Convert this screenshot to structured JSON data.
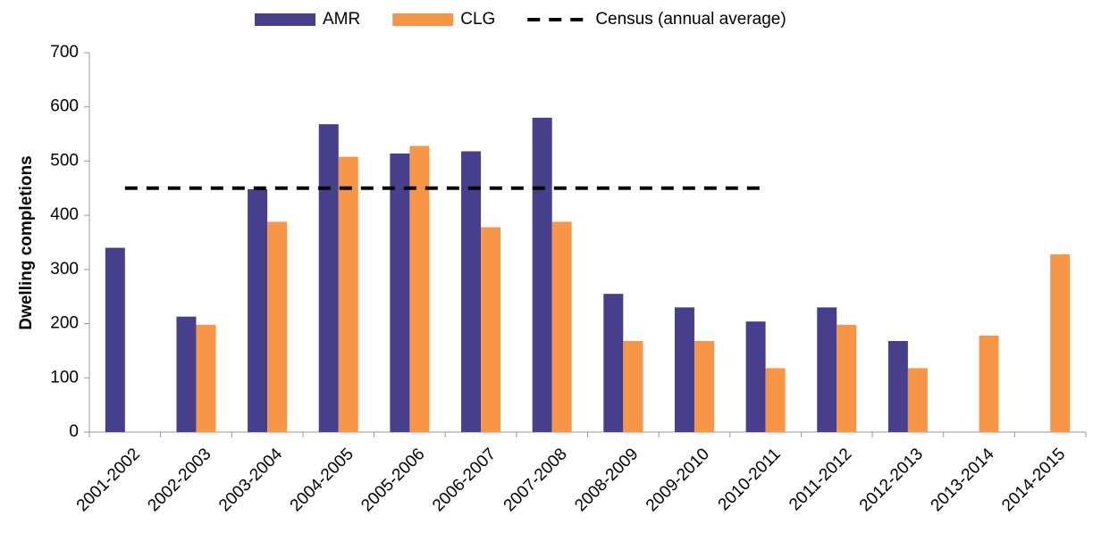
{
  "chart_data": {
    "type": "bar",
    "y_label": "Dwelling completions",
    "categories": [
      "2001-2002",
      "2002-2003",
      "2003-2004",
      "2004-2005",
      "2005-2006",
      "2006-2007",
      "2007-2008",
      "2008-2009",
      "2009-2010",
      "2010-2011",
      "2011-2012",
      "2012-2013",
      "2013-2014",
      "2014-2015"
    ],
    "series": [
      {
        "name": "AMR",
        "type": "bar",
        "color": "#453f8c",
        "values": [
          340,
          213,
          448,
          568,
          514,
          518,
          580,
          255,
          230,
          204,
          230,
          168,
          null,
          null
        ]
      },
      {
        "name": "CLG",
        "type": "bar",
        "color": "#f79646",
        "values": [
          null,
          198,
          388,
          508,
          528,
          378,
          388,
          168,
          168,
          118,
          198,
          118,
          178,
          328
        ]
      },
      {
        "name": "Census (annual average)",
        "type": "line",
        "dashed": true,
        "color": "#000000",
        "values": [
          450,
          450,
          450,
          450,
          450,
          450,
          450,
          450,
          450,
          450,
          null,
          null,
          null,
          null
        ]
      }
    ],
    "ylim": [
      0,
      700
    ],
    "yticks": [
      0,
      100,
      200,
      300,
      400,
      500,
      600,
      700
    ],
    "grid": false,
    "legend": "top"
  }
}
